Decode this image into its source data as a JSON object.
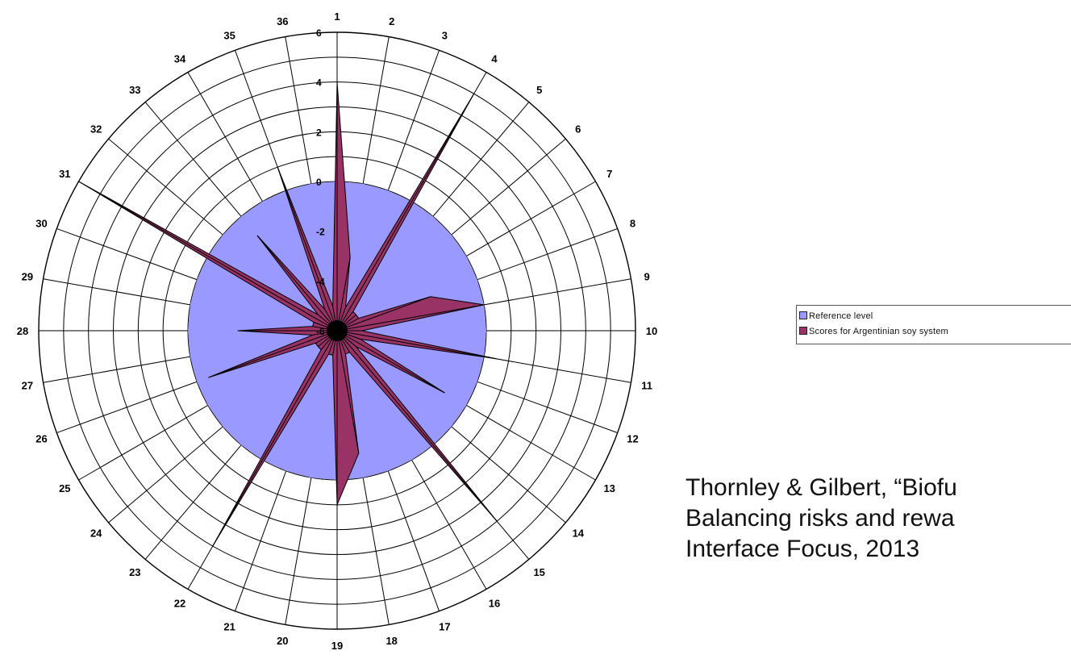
{
  "chart_data": {
    "type": "radar",
    "categories": [
      "1",
      "2",
      "3",
      "4",
      "5",
      "6",
      "7",
      "8",
      "9",
      "10",
      "11",
      "12",
      "13",
      "14",
      "15",
      "16",
      "17",
      "18",
      "19",
      "20",
      "21",
      "22",
      "23",
      "24",
      "25",
      "26",
      "27",
      "28",
      "29",
      "30",
      "31",
      "32",
      "33",
      "34",
      "35",
      "36"
    ],
    "radial_range": [
      -6,
      6
    ],
    "radial_ticks": [
      "6",
      "4",
      "2",
      "0",
      "-2",
      "-4",
      "-6"
    ],
    "series": [
      {
        "name": "Reference level",
        "color": "#9999ff",
        "values": [
          0,
          0,
          0,
          0,
          0,
          0,
          0,
          0,
          0,
          0,
          0,
          0,
          0,
          0,
          0,
          0,
          0,
          0,
          0,
          0,
          0,
          0,
          0,
          0,
          0,
          0,
          0,
          0,
          0,
          0,
          0,
          0,
          0,
          0,
          0,
          0
        ]
      },
      {
        "name": "Scores for Argentinian soy system",
        "color": "#993366",
        "values": [
          4,
          -3,
          -5,
          5,
          -5,
          -5,
          -5,
          -2,
          0,
          -5,
          0.5,
          -5,
          -1,
          -5,
          4,
          -5,
          -5,
          -1,
          1,
          -5,
          -5,
          4,
          -5,
          -5,
          -5,
          -0.5,
          -5,
          -2,
          -5,
          -5,
          6,
          -5,
          -1,
          -5,
          1,
          -5
        ]
      }
    ],
    "grid": true
  },
  "legend": {
    "items": [
      {
        "label": "Reference level",
        "color": "#9999ff"
      },
      {
        "label": "Scores for Argentinian soy system",
        "color": "#993366"
      }
    ]
  },
  "citation": {
    "line1": "Thornley & Gilbert, “Biofu",
    "line2": "Balancing risks and rewa",
    "line3": "Interface Focus, 2013"
  }
}
